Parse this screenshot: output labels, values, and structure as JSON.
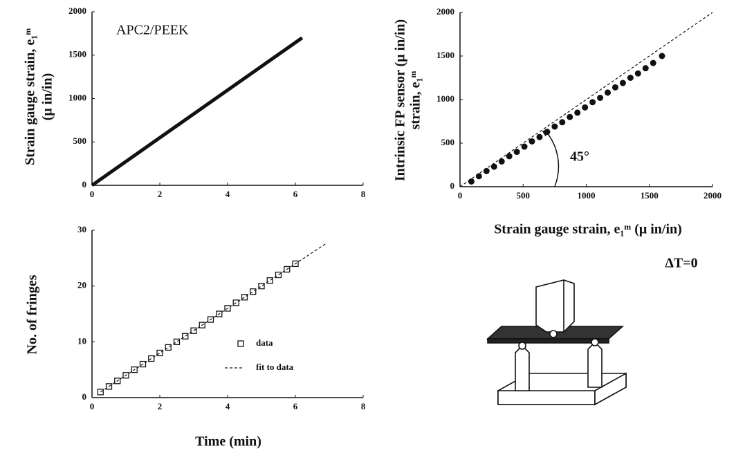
{
  "chart_data": [
    {
      "type": "line",
      "ylabel": [
        "Strain gauge strain, e₁ᵐ",
        "(μ in/in)"
      ],
      "annotations": [
        "APC2/PEEK"
      ],
      "series": [
        {
          "color": "#111111",
          "x": [
            0,
            6.2
          ],
          "values": [
            0,
            1700
          ]
        }
      ],
      "xlim": [
        0,
        8
      ],
      "xticks": [
        0,
        2,
        4,
        6,
        8
      ],
      "ylim": [
        0,
        2000
      ],
      "yticks": [
        0,
        500,
        1000,
        1500,
        2000
      ]
    },
    {
      "type": "scatter",
      "xlabel": "Strain gauge strain, e₁ᵐ   (μ in/in)",
      "ylabel": [
        "Intrinsic FP sensor   (μ in/in)",
        "strain, e₁ᵐ"
      ],
      "annotations": [
        "45°"
      ],
      "series": [
        {
          "type": "scatter",
          "marker": "circle",
          "color": "#111111",
          "x": [
            90,
            150,
            210,
            270,
            330,
            390,
            450,
            510,
            570,
            630,
            690,
            750,
            810,
            870,
            930,
            990,
            1050,
            1110,
            1170,
            1230,
            1290,
            1350,
            1410,
            1470,
            1530,
            1600
          ],
          "values": [
            60,
            120,
            180,
            230,
            290,
            350,
            400,
            460,
            520,
            570,
            630,
            690,
            740,
            800,
            850,
            910,
            970,
            1020,
            1080,
            1140,
            1190,
            1250,
            1300,
            1360,
            1420,
            1500
          ]
        },
        {
          "type": "line",
          "linestyle": "dashed",
          "color": "#111111",
          "x": [
            0,
            2000
          ],
          "values": [
            0,
            2000
          ]
        }
      ],
      "xlim": [
        0,
        2000
      ],
      "xticks": [
        0,
        500,
        1000,
        1500,
        2000
      ],
      "ylim": [
        0,
        2000
      ],
      "yticks": [
        0,
        500,
        1000,
        1500,
        2000
      ]
    },
    {
      "type": "scatter",
      "xlabel": "Time (min)",
      "ylabel": [
        "No. of fringes"
      ],
      "series": [
        {
          "name": "data",
          "type": "scatter",
          "marker": "square",
          "color": "#111111",
          "x": [
            0.25,
            0.5,
            0.75,
            1,
            1.25,
            1.5,
            1.75,
            2,
            2.25,
            2.5,
            2.75,
            3,
            3.25,
            3.5,
            3.75,
            4,
            4.25,
            4.5,
            4.75,
            5,
            5.25,
            5.5,
            5.75,
            6
          ],
          "values": [
            1,
            2,
            3,
            4,
            5,
            6,
            7,
            8,
            9,
            10,
            11,
            12,
            13,
            14,
            15,
            16,
            17,
            18,
            19,
            20,
            21,
            22,
            23,
            24
          ]
        },
        {
          "name": "fit to data",
          "type": "line",
          "linestyle": "dashed",
          "color": "#111111",
          "x": [
            0.25,
            6.9
          ],
          "values": [
            1,
            27.6
          ]
        }
      ],
      "xlim": [
        0,
        8
      ],
      "xticks": [
        0,
        2,
        4,
        6,
        8
      ],
      "ylim": [
        0,
        30
      ],
      "yticks": [
        0,
        10,
        20,
        30
      ]
    }
  ],
  "diagram": {
    "label": "ΔT=0"
  }
}
